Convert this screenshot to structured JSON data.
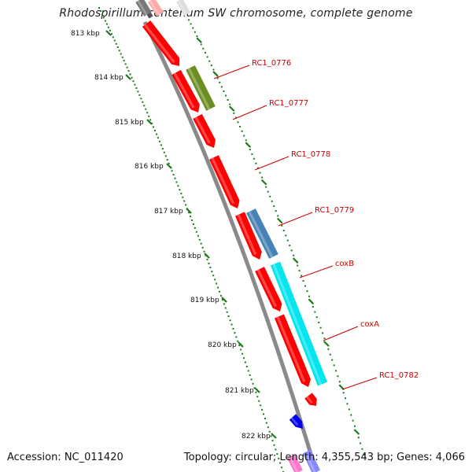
{
  "title": "Rhodospirillum centenum SW chromosome, complete genome",
  "footer": {
    "accession": "Accession: NC_011420",
    "topology": "Topology: circular; Length: 4,355,543 bp; Genes: 4,066"
  },
  "colors": {
    "backbone": "#8a8a8a",
    "forward_gene": "#ff0000",
    "green_gene": "#6b8e23",
    "steel_gene": "#4682b4",
    "cyan_gene": "#00e5ee",
    "blue_gene": "#0000ee",
    "label": "#cc0000",
    "ticks": "#1a7a1a"
  },
  "ruler": {
    "labels": [
      "813 kbp",
      "814 kbp",
      "815 kbp",
      "816 kbp",
      "817 kbp",
      "818 kbp",
      "819 kbp",
      "820 kbp",
      "821 kbp",
      "822 kbp"
    ]
  },
  "gene_labels": [
    "RC1_0776",
    "RC1_0777",
    "RC1_0778",
    "RC1_0779",
    "coxB",
    "coxA",
    "RC1_0782"
  ]
}
